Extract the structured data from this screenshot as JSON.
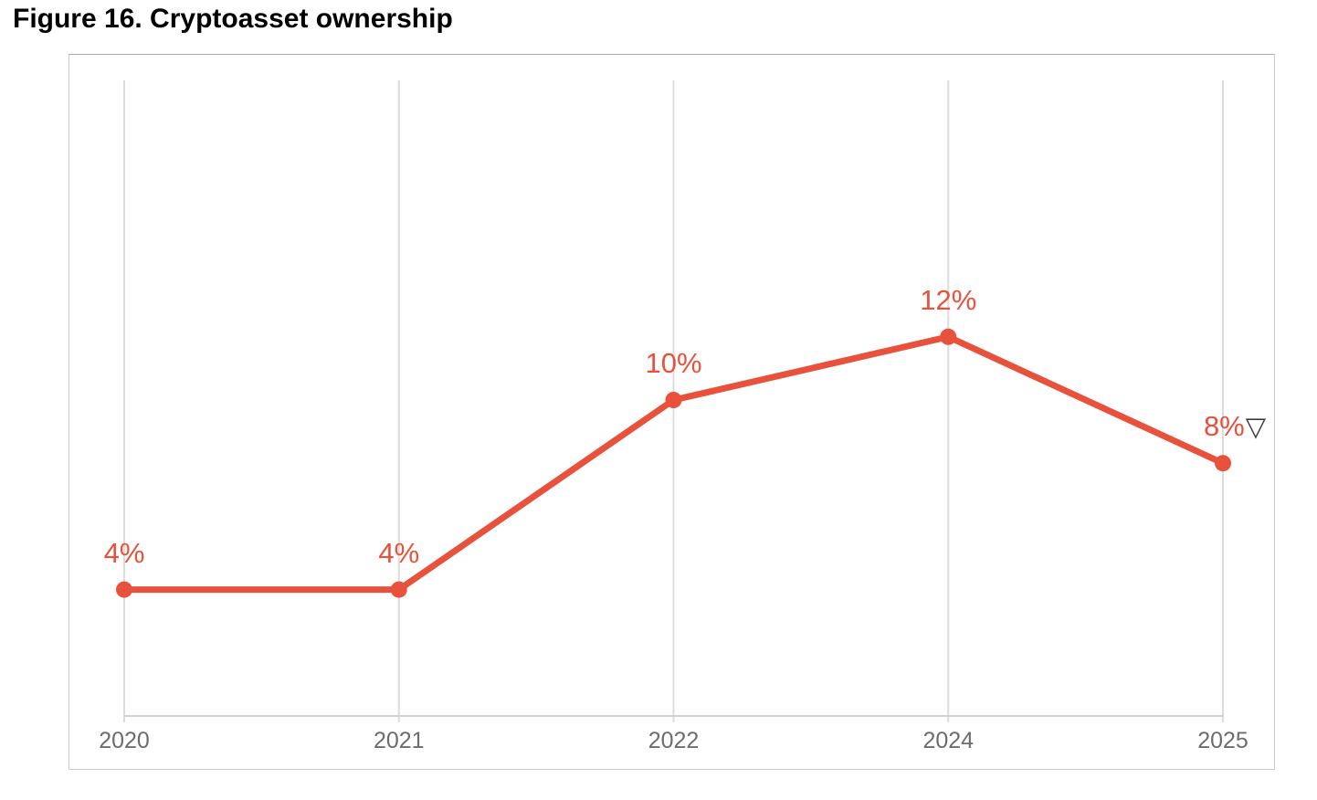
{
  "title": "Figure 16. Cryptoasset ownership",
  "chart_data": {
    "type": "line",
    "title": "Figure 16. Cryptoasset ownership",
    "categories": [
      "2020",
      "2021",
      "2022",
      "2024",
      "2025"
    ],
    "values": [
      4,
      4,
      10,
      12,
      8
    ],
    "point_labels": [
      "4%",
      "4%",
      "10%",
      "12%",
      "8%"
    ],
    "end_annotation": "▽",
    "xlabel": "",
    "ylabel": "",
    "ylim": [
      0,
      21
    ],
    "grid": "vertical",
    "legend": "none",
    "colors": {
      "line": "#e8523c",
      "point": "#e8523c",
      "data_label": "#e8523c",
      "annotation": "#3c3c3c",
      "axis_label": "#6c6c6c",
      "gridline": "#dcdcdc",
      "axis_line": "#d0d0d0",
      "chart_border": "#cccccc",
      "title": "#000000",
      "background": "#ffffff"
    }
  }
}
